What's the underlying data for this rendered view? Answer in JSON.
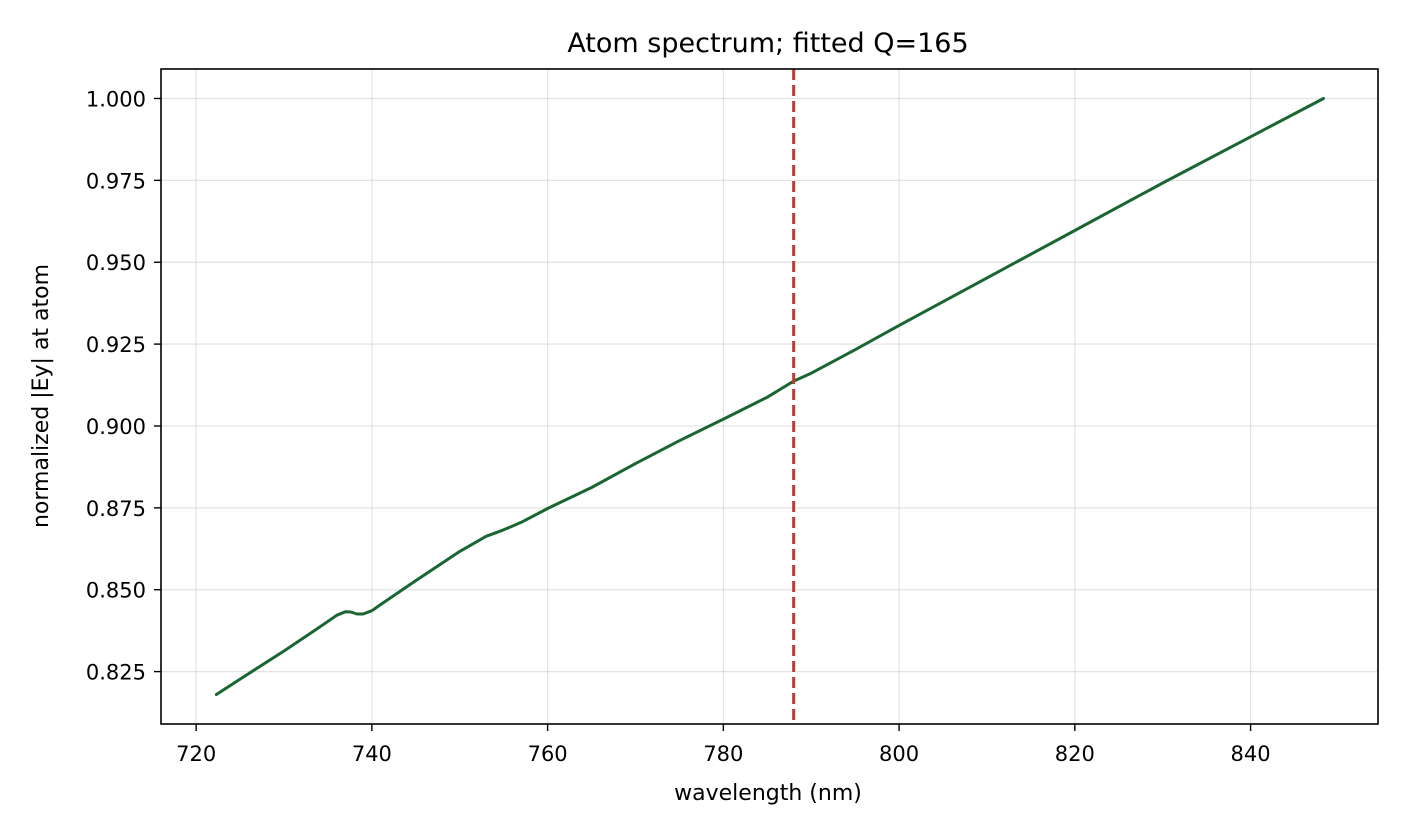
{
  "chart_data": {
    "type": "line",
    "title": "Atom spectrum; fitted Q=165",
    "xlabel": "wavelength (nm)",
    "ylabel": "normalized |Ey| at atom",
    "xlim": [
      716.0,
      854.5
    ],
    "ylim": [
      0.809,
      1.009
    ],
    "xticks": [
      720,
      740,
      760,
      780,
      800,
      820,
      840
    ],
    "xtick_labels": [
      "720",
      "740",
      "760",
      "780",
      "800",
      "820",
      "840"
    ],
    "yticks": [
      0.825,
      0.85,
      0.875,
      0.9,
      0.925,
      0.95,
      0.975,
      1.0
    ],
    "ytick_labels": [
      "0.825",
      "0.850",
      "0.875",
      "0.900",
      "0.925",
      "0.950",
      "0.975",
      "1.000"
    ],
    "grid": true,
    "series": [
      {
        "color": "#1a6632",
        "x": [
          722.3,
          725,
          730,
          734,
          736,
          737,
          737.6,
          738.3,
          739,
          740,
          741,
          745,
          750,
          753,
          755,
          757,
          760,
          765,
          770,
          775,
          780,
          785,
          788,
          790,
          795,
          800,
          810,
          820,
          830,
          840,
          848.3
        ],
        "y": [
          0.818,
          0.8227,
          0.8313,
          0.8385,
          0.8422,
          0.8433,
          0.8432,
          0.8426,
          0.8426,
          0.8436,
          0.8455,
          0.8528,
          0.8617,
          0.8663,
          0.8683,
          0.8706,
          0.8748,
          0.8812,
          0.8885,
          0.8955,
          0.9021,
          0.9088,
          0.9137,
          0.9161,
          0.9233,
          0.9307,
          0.9452,
          0.9597,
          0.9742,
          0.9883,
          1.0
        ]
      }
    ],
    "vline": {
      "x": 788.0,
      "color": "#c0392b",
      "style": "dashed"
    }
  }
}
